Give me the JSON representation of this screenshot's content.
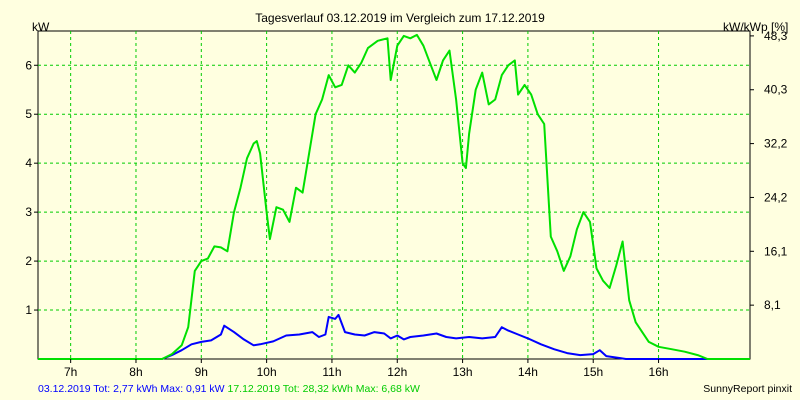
{
  "chart_data": {
    "type": "line",
    "title": "Tagesverlauf 03.12.2019 im Vergleich zum 17.12.2019",
    "ylabel_left": "kW",
    "ylabel_right": "kW/kWp [%]",
    "x_ticks": [
      "7h",
      "8h",
      "9h",
      "10h",
      "11h",
      "12h",
      "13h",
      "14h",
      "15h",
      "16h"
    ],
    "x_range": [
      6.5,
      17.4
    ],
    "y_range": [
      0,
      6.7
    ],
    "y_ticks_left": [
      1,
      2,
      3,
      4,
      5,
      6
    ],
    "y_ticks_right": [
      {
        "v": 1.1,
        "label": "8,1"
      },
      {
        "v": 2.2,
        "label": "16,1"
      },
      {
        "v": 3.3,
        "label": "24,2"
      },
      {
        "v": 4.4,
        "label": "32,2"
      },
      {
        "v": 5.5,
        "label": "40,3"
      },
      {
        "v": 6.6,
        "label": "48,3"
      }
    ],
    "grid": true,
    "colors": {
      "background": "#ffffe0",
      "grid": "#00cc00",
      "series_a": "#0000ff",
      "series_b": "#00e000"
    },
    "series": [
      {
        "name": "03.12.2019",
        "color": "#0000ff",
        "points": [
          [
            6.5,
            0
          ],
          [
            8.4,
            0
          ],
          [
            8.55,
            0.08
          ],
          [
            8.7,
            0.18
          ],
          [
            8.85,
            0.3
          ],
          [
            9.0,
            0.35
          ],
          [
            9.15,
            0.38
          ],
          [
            9.3,
            0.5
          ],
          [
            9.35,
            0.68
          ],
          [
            9.5,
            0.55
          ],
          [
            9.65,
            0.4
          ],
          [
            9.8,
            0.28
          ],
          [
            9.9,
            0.3
          ],
          [
            10.1,
            0.36
          ],
          [
            10.3,
            0.48
          ],
          [
            10.5,
            0.5
          ],
          [
            10.7,
            0.55
          ],
          [
            10.8,
            0.45
          ],
          [
            10.9,
            0.5
          ],
          [
            10.95,
            0.86
          ],
          [
            11.05,
            0.82
          ],
          [
            11.1,
            0.9
          ],
          [
            11.2,
            0.55
          ],
          [
            11.35,
            0.5
          ],
          [
            11.5,
            0.48
          ],
          [
            11.65,
            0.55
          ],
          [
            11.8,
            0.52
          ],
          [
            11.9,
            0.42
          ],
          [
            12.0,
            0.48
          ],
          [
            12.1,
            0.4
          ],
          [
            12.2,
            0.45
          ],
          [
            12.4,
            0.48
          ],
          [
            12.6,
            0.52
          ],
          [
            12.75,
            0.45
          ],
          [
            12.9,
            0.42
          ],
          [
            13.1,
            0.45
          ],
          [
            13.3,
            0.42
          ],
          [
            13.5,
            0.45
          ],
          [
            13.6,
            0.65
          ],
          [
            13.7,
            0.58
          ],
          [
            13.85,
            0.5
          ],
          [
            14.0,
            0.42
          ],
          [
            14.2,
            0.3
          ],
          [
            14.4,
            0.2
          ],
          [
            14.6,
            0.12
          ],
          [
            14.8,
            0.08
          ],
          [
            15.0,
            0.1
          ],
          [
            15.1,
            0.18
          ],
          [
            15.2,
            0.06
          ],
          [
            15.4,
            0.02
          ],
          [
            15.5,
            0
          ],
          [
            17.4,
            0
          ]
        ]
      },
      {
        "name": "17.12.2019",
        "color": "#00e000",
        "points": [
          [
            6.5,
            0
          ],
          [
            8.4,
            0
          ],
          [
            8.55,
            0.1
          ],
          [
            8.7,
            0.28
          ],
          [
            8.8,
            0.65
          ],
          [
            8.9,
            1.8
          ],
          [
            9.0,
            2.0
          ],
          [
            9.1,
            2.05
          ],
          [
            9.2,
            2.3
          ],
          [
            9.3,
            2.28
          ],
          [
            9.4,
            2.2
          ],
          [
            9.5,
            3.0
          ],
          [
            9.6,
            3.5
          ],
          [
            9.7,
            4.1
          ],
          [
            9.8,
            4.4
          ],
          [
            9.85,
            4.45
          ],
          [
            9.9,
            4.2
          ],
          [
            10.0,
            3.0
          ],
          [
            10.05,
            2.45
          ],
          [
            10.15,
            3.1
          ],
          [
            10.25,
            3.05
          ],
          [
            10.35,
            2.8
          ],
          [
            10.45,
            3.5
          ],
          [
            10.55,
            3.4
          ],
          [
            10.65,
            4.2
          ],
          [
            10.75,
            5.0
          ],
          [
            10.85,
            5.3
          ],
          [
            10.95,
            5.8
          ],
          [
            11.05,
            5.55
          ],
          [
            11.15,
            5.6
          ],
          [
            11.25,
            6.0
          ],
          [
            11.35,
            5.85
          ],
          [
            11.45,
            6.05
          ],
          [
            11.55,
            6.35
          ],
          [
            11.7,
            6.5
          ],
          [
            11.85,
            6.55
          ],
          [
            11.9,
            5.7
          ],
          [
            12.0,
            6.4
          ],
          [
            12.1,
            6.6
          ],
          [
            12.2,
            6.55
          ],
          [
            12.3,
            6.62
          ],
          [
            12.4,
            6.4
          ],
          [
            12.5,
            6.05
          ],
          [
            12.6,
            5.7
          ],
          [
            12.7,
            6.1
          ],
          [
            12.8,
            6.3
          ],
          [
            12.9,
            5.3
          ],
          [
            13.0,
            4.0
          ],
          [
            13.05,
            3.9
          ],
          [
            13.1,
            4.6
          ],
          [
            13.2,
            5.5
          ],
          [
            13.3,
            5.85
          ],
          [
            13.4,
            5.2
          ],
          [
            13.5,
            5.3
          ],
          [
            13.6,
            5.8
          ],
          [
            13.7,
            6.0
          ],
          [
            13.8,
            6.1
          ],
          [
            13.85,
            5.4
          ],
          [
            13.95,
            5.6
          ],
          [
            14.05,
            5.4
          ],
          [
            14.15,
            5.0
          ],
          [
            14.25,
            4.8
          ],
          [
            14.35,
            2.5
          ],
          [
            14.45,
            2.2
          ],
          [
            14.55,
            1.8
          ],
          [
            14.65,
            2.1
          ],
          [
            14.75,
            2.65
          ],
          [
            14.85,
            3.0
          ],
          [
            14.95,
            2.8
          ],
          [
            15.05,
            1.85
          ],
          [
            15.15,
            1.6
          ],
          [
            15.25,
            1.45
          ],
          [
            15.35,
            1.9
          ],
          [
            15.45,
            2.4
          ],
          [
            15.55,
            1.2
          ],
          [
            15.65,
            0.75
          ],
          [
            15.75,
            0.55
          ],
          [
            15.85,
            0.35
          ],
          [
            16.0,
            0.25
          ],
          [
            16.2,
            0.2
          ],
          [
            16.4,
            0.15
          ],
          [
            16.6,
            0.08
          ],
          [
            16.75,
            0
          ],
          [
            17.4,
            0
          ]
        ]
      }
    ]
  },
  "footer": {
    "series_a_summary": "03.12.2019 Tot: 2,77 kWh Max: 0,91 kW",
    "series_b_summary": "17.12.2019 Tot: 28,32 kWh Max: 6,68 kW",
    "credit": "SunnyReport pinxit"
  }
}
